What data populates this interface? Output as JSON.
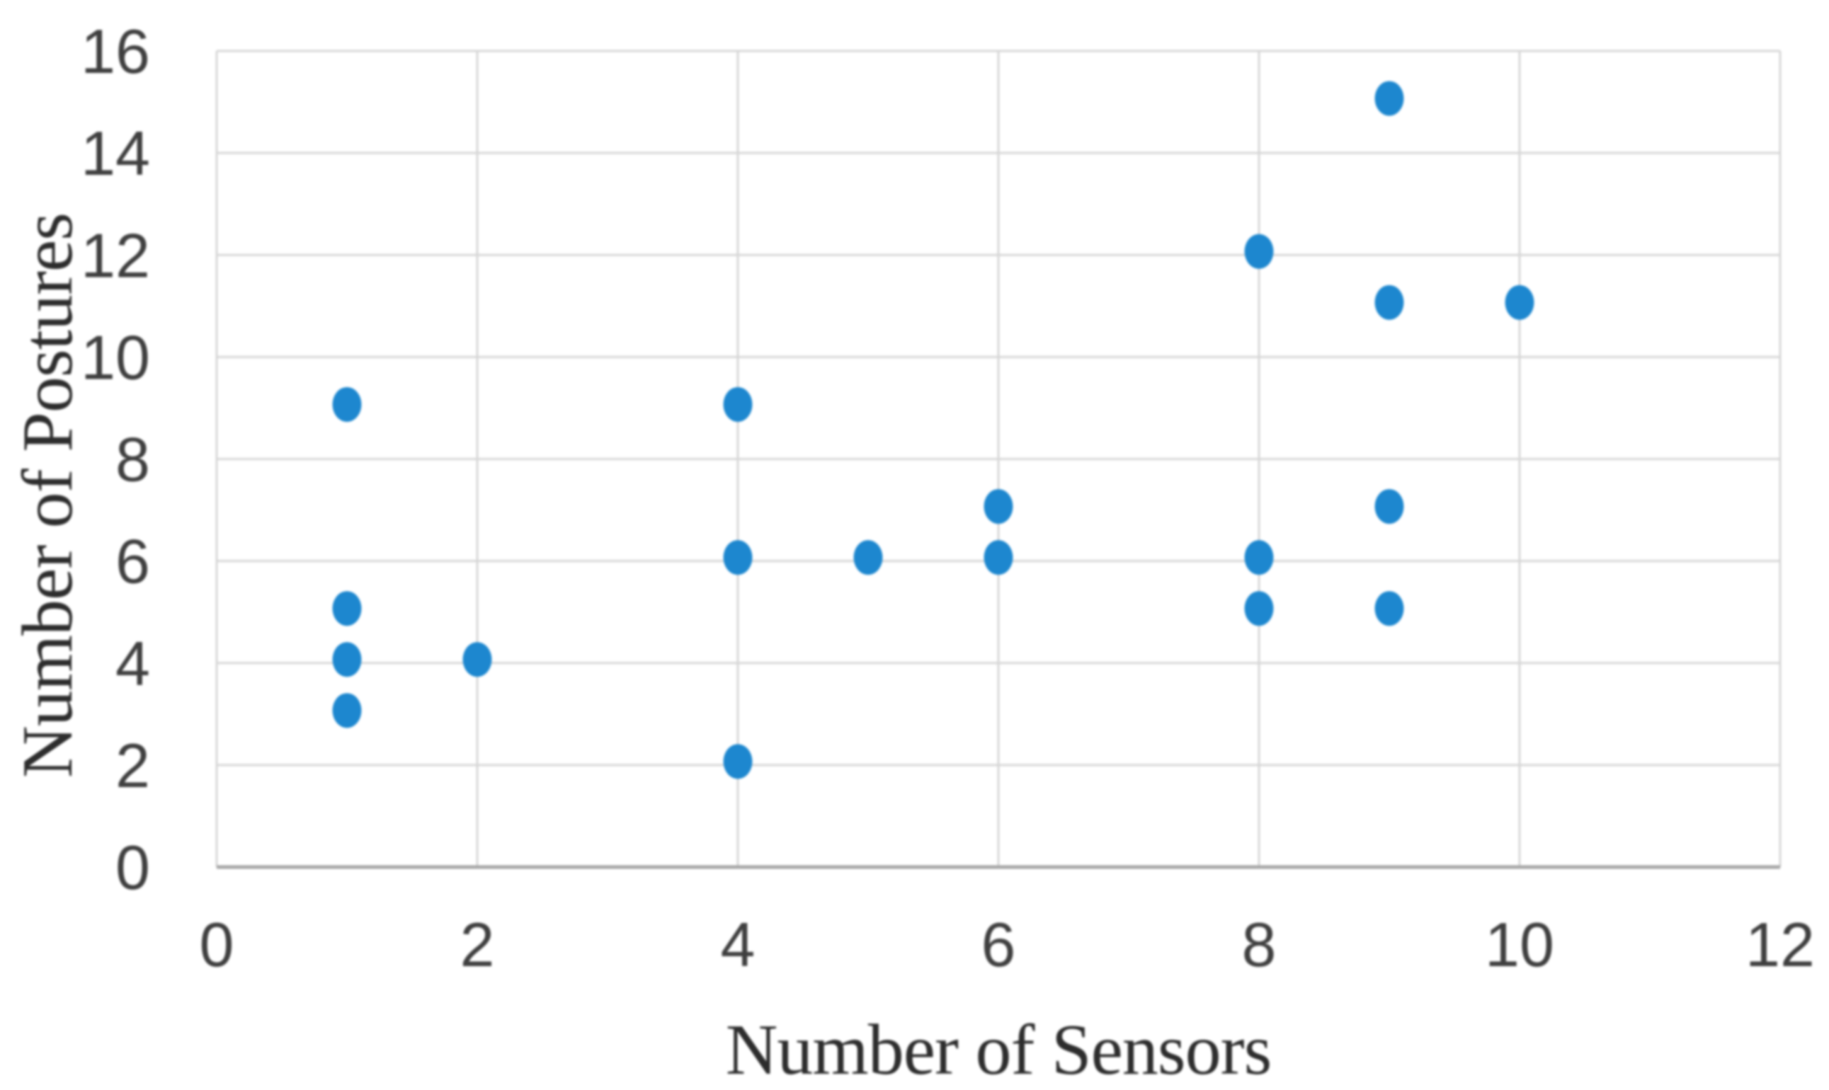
{
  "chart_data": {
    "type": "scatter",
    "title": "",
    "xlabel": "Number of Sensors",
    "ylabel": "Number of Postures",
    "xlim": [
      0,
      12
    ],
    "ylim": [
      0,
      16
    ],
    "x_ticks": [
      0,
      2,
      4,
      6,
      8,
      10,
      12
    ],
    "y_ticks": [
      0,
      2,
      4,
      6,
      8,
      10,
      12,
      14,
      16
    ],
    "grid": true,
    "legend_position": "none",
    "gridline_color": "#d6d6d6",
    "axis_line_color": "#a6a6a6",
    "tick_label_color": "#3f3f3f",
    "title_color": "#2d2d2d",
    "background_color": "#ffffff",
    "series": [
      {
        "name": "",
        "marker": "circle",
        "color": "#1d87cf",
        "points": [
          [
            1,
            9
          ],
          [
            1,
            5
          ],
          [
            1,
            4
          ],
          [
            1,
            3
          ],
          [
            2,
            4
          ],
          [
            4,
            9
          ],
          [
            4,
            6
          ],
          [
            4,
            2
          ],
          [
            5,
            6
          ],
          [
            6,
            7
          ],
          [
            6,
            6
          ],
          [
            8,
            12
          ],
          [
            8,
            6
          ],
          [
            8,
            5
          ],
          [
            9,
            15
          ],
          [
            9,
            11
          ],
          [
            9,
            7
          ],
          [
            9,
            5
          ],
          [
            10,
            11
          ]
        ]
      }
    ]
  }
}
